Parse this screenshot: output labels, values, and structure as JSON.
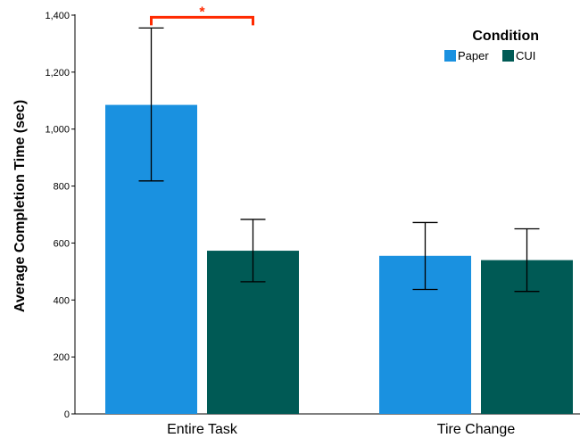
{
  "chart_data": {
    "type": "bar",
    "title": "",
    "xlabel": "",
    "ylabel": "Average Completion Time (sec)",
    "ylim": [
      0,
      1400
    ],
    "yticks": [
      0,
      200,
      400,
      600,
      800,
      1000,
      1200,
      1400
    ],
    "ytick_labels": [
      "0",
      "200",
      "400",
      "600",
      "800",
      "1,000",
      "1,200",
      "1,400"
    ],
    "categories": [
      "Entire Task",
      "Tire Change"
    ],
    "series": [
      {
        "name": "Paper",
        "color": "#1a91e0",
        "values": [
          1085,
          555
        ],
        "error_low": [
          818,
          437
        ],
        "error_high": [
          1355,
          672
        ]
      },
      {
        "name": "CUI",
        "color": "#005a55",
        "values": [
          573,
          540
        ],
        "error_low": [
          464,
          430
        ],
        "error_high": [
          683,
          650
        ]
      }
    ],
    "legend": {
      "title": "Condition",
      "placement": "top-right"
    },
    "annotations": [
      {
        "text": "*",
        "type": "significance-bracket",
        "category": "Entire Task",
        "between": [
          "Paper",
          "CUI"
        ],
        "color": "#ff2a00"
      }
    ],
    "grid": false
  }
}
